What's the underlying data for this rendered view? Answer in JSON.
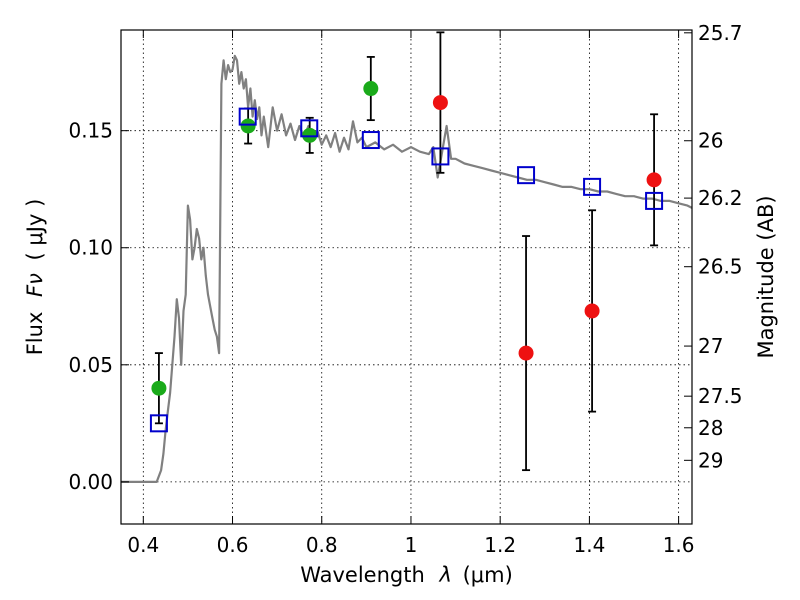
{
  "chart_data": {
    "type": "scatter",
    "title": "",
    "xlabel": "Wavelength",
    "xlabel_symbol": "λ",
    "xlabel_unit": "(μm)",
    "ylabel": "Flux",
    "ylabel_symbol": "Fν",
    "ylabel_unit": "( μJy )",
    "ylabel_right": "Magnitude (AB)",
    "xlim": [
      0.35,
      1.63
    ],
    "ylim": [
      -0.018,
      0.193
    ],
    "grid": true,
    "x_ticks": [
      0.4,
      0.6,
      0.8,
      1.0,
      1.2,
      1.4,
      1.6
    ],
    "x_tick_labels": [
      "0.4",
      "0.6",
      "0.8",
      "1",
      "1.2",
      "1.4",
      "1.6"
    ],
    "y_ticks": [
      0.0,
      0.05,
      0.1,
      0.15
    ],
    "y_tick_labels": [
      "0.00",
      "0.05",
      "0.10",
      "0.15"
    ],
    "right_ticks": [
      {
        "label": "25.7",
        "flux": 0.1918
      },
      {
        "label": "26",
        "flux": 0.1457
      },
      {
        "label": "26.2",
        "flux": 0.1212
      },
      {
        "label": "26.5",
        "flux": 0.0919
      },
      {
        "label": "27",
        "flux": 0.058
      },
      {
        "label": "27.5",
        "flux": 0.0366
      },
      {
        "label": "28",
        "flux": 0.0231
      },
      {
        "label": "29",
        "flux": 0.0092
      }
    ],
    "colors": {
      "green": "#1aaa1a",
      "red": "#ee1111",
      "blue": "#0000cc",
      "model": "#808080"
    },
    "series": [
      {
        "marker": "green-circle",
        "points": [
          {
            "x": 0.435,
            "y": 0.04,
            "err": 0.015
          },
          {
            "x": 0.635,
            "y": 0.152,
            "err": 0.0075
          },
          {
            "x": 0.773,
            "y": 0.148,
            "err": 0.0075
          },
          {
            "x": 0.91,
            "y": 0.168,
            "err": 0.0135
          }
        ]
      },
      {
        "marker": "red-circle",
        "points": [
          {
            "x": 1.066,
            "y": 0.162,
            "err": 0.03
          },
          {
            "x": 1.258,
            "y": 0.055,
            "err": 0.05
          },
          {
            "x": 1.406,
            "y": 0.073,
            "err": 0.043
          },
          {
            "x": 1.545,
            "y": 0.129,
            "err": 0.028
          }
        ]
      },
      {
        "marker": "blue-square",
        "points": [
          {
            "x": 0.435,
            "y": 0.025
          },
          {
            "x": 0.634,
            "y": 0.156
          },
          {
            "x": 0.772,
            "y": 0.151
          },
          {
            "x": 0.91,
            "y": 0.146
          },
          {
            "x": 1.066,
            "y": 0.139
          },
          {
            "x": 1.258,
            "y": 0.131
          },
          {
            "x": 1.406,
            "y": 0.126
          },
          {
            "x": 1.545,
            "y": 0.12
          }
        ]
      },
      {
        "marker": "model-line",
        "x": [
          0.35,
          0.42,
          0.43,
          0.44,
          0.445,
          0.45,
          0.455,
          0.46,
          0.465,
          0.47,
          0.475,
          0.48,
          0.485,
          0.49,
          0.495,
          0.5,
          0.505,
          0.51,
          0.515,
          0.52,
          0.525,
          0.53,
          0.535,
          0.54,
          0.545,
          0.55,
          0.555,
          0.56,
          0.565,
          0.57,
          0.575,
          0.58,
          0.585,
          0.59,
          0.595,
          0.6,
          0.605,
          0.61,
          0.615,
          0.62,
          0.625,
          0.63,
          0.635,
          0.64,
          0.645,
          0.65,
          0.655,
          0.66,
          0.665,
          0.67,
          0.68,
          0.69,
          0.7,
          0.71,
          0.72,
          0.73,
          0.74,
          0.75,
          0.76,
          0.77,
          0.78,
          0.79,
          0.8,
          0.81,
          0.82,
          0.83,
          0.84,
          0.85,
          0.86,
          0.87,
          0.88,
          0.89,
          0.9,
          0.92,
          0.94,
          0.96,
          0.98,
          1.0,
          1.02,
          1.04,
          1.05,
          1.06,
          1.08,
          1.09,
          1.1,
          1.11,
          1.12,
          1.14,
          1.16,
          1.18,
          1.2,
          1.22,
          1.24,
          1.26,
          1.28,
          1.3,
          1.32,
          1.34,
          1.36,
          1.38,
          1.4,
          1.42,
          1.44,
          1.46,
          1.48,
          1.5,
          1.52,
          1.54,
          1.56,
          1.58,
          1.6,
          1.62,
          1.63
        ],
        "y": [
          0.0,
          0.0,
          0.0,
          0.005,
          0.012,
          0.022,
          0.03,
          0.038,
          0.05,
          0.062,
          0.078,
          0.07,
          0.05,
          0.073,
          0.08,
          0.118,
          0.112,
          0.095,
          0.1,
          0.108,
          0.104,
          0.095,
          0.1,
          0.088,
          0.08,
          0.075,
          0.07,
          0.065,
          0.062,
          0.055,
          0.17,
          0.18,
          0.172,
          0.178,
          0.175,
          0.176,
          0.182,
          0.18,
          0.17,
          0.175,
          0.168,
          0.172,
          0.16,
          0.168,
          0.156,
          0.163,
          0.155,
          0.16,
          0.148,
          0.156,
          0.143,
          0.16,
          0.15,
          0.157,
          0.148,
          0.153,
          0.146,
          0.152,
          0.147,
          0.152,
          0.146,
          0.15,
          0.144,
          0.148,
          0.143,
          0.149,
          0.141,
          0.147,
          0.142,
          0.154,
          0.145,
          0.147,
          0.143,
          0.145,
          0.142,
          0.144,
          0.141,
          0.143,
          0.141,
          0.14,
          0.143,
          0.13,
          0.152,
          0.138,
          0.138,
          0.137,
          0.136,
          0.135,
          0.134,
          0.133,
          0.132,
          0.131,
          0.13,
          0.129,
          0.129,
          0.128,
          0.127,
          0.126,
          0.126,
          0.125,
          0.125,
          0.124,
          0.124,
          0.123,
          0.122,
          0.122,
          0.121,
          0.121,
          0.12,
          0.12,
          0.119,
          0.118,
          0.117
        ]
      }
    ]
  }
}
